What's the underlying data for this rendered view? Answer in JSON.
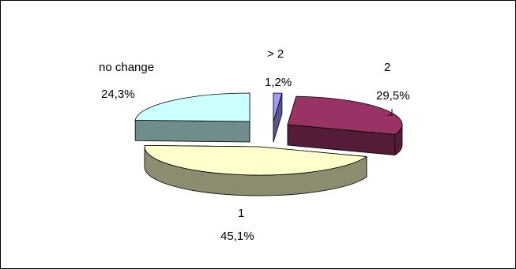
{
  "chart_data": {
    "type": "pie",
    "style": "3d-exploded",
    "slices": [
      {
        "label": "> 2",
        "value": 1.2,
        "value_text": "1,2%",
        "color": "#9a9aff"
      },
      {
        "label": "2",
        "value": 29.5,
        "value_text": "29,5%",
        "color": "#993366"
      },
      {
        "label": "1",
        "value": 45.1,
        "value_text": "45,1%",
        "color": "#ffffcc"
      },
      {
        "label": "no change",
        "value": 24.3,
        "value_text": "24,3%",
        "color": "#ccffff"
      }
    ],
    "legend": "none"
  }
}
